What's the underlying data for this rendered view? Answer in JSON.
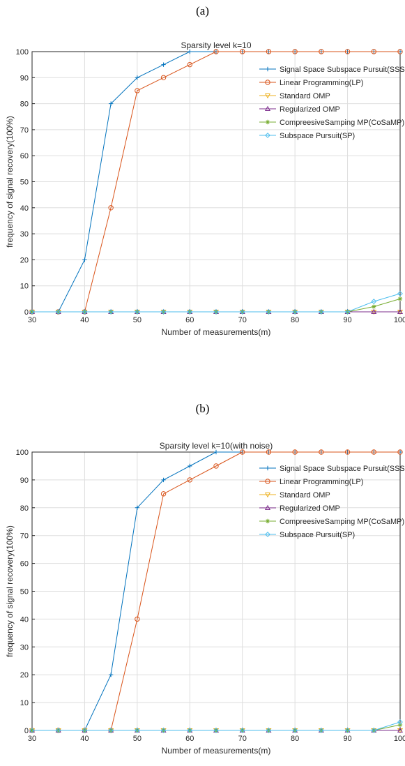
{
  "panels": {
    "a": {
      "label": "(a)"
    },
    "b": {
      "label": "(b)"
    }
  },
  "chart_data": [
    {
      "type": "line",
      "title": "Sparsity level k=10",
      "xlabel": "Number of measurements(m)",
      "ylabel": "frequency of signal recovery(100%)",
      "xlim": [
        30,
        100
      ],
      "ylim": [
        0,
        100
      ],
      "xticks": [
        30,
        40,
        50,
        60,
        70,
        80,
        90,
        100
      ],
      "yticks": [
        0,
        10,
        20,
        30,
        40,
        50,
        60,
        70,
        80,
        90,
        100
      ],
      "grid": true,
      "legend_position": "top-right",
      "x": [
        30,
        35,
        40,
        45,
        50,
        55,
        60,
        65,
        70,
        75,
        80,
        85,
        90,
        95,
        100
      ],
      "series": [
        {
          "name": "Signal Space Subspace Pursuit(SSSP)",
          "color": "#0072BD",
          "marker": "plus",
          "values": [
            0,
            0,
            20,
            80,
            90,
            95,
            100,
            100,
            100,
            100,
            100,
            100,
            100,
            100,
            100
          ]
        },
        {
          "name": "Linear Programming(LP)",
          "color": "#D95319",
          "marker": "circle",
          "values": [
            0,
            0,
            0,
            40,
            85,
            90,
            95,
            100,
            100,
            100,
            100,
            100,
            100,
            100,
            100
          ]
        },
        {
          "name": "Standard OMP",
          "color": "#EDB120",
          "marker": "triangle-down",
          "values": [
            0,
            0,
            0,
            0,
            0,
            0,
            0,
            0,
            0,
            0,
            0,
            0,
            0,
            0,
            0
          ]
        },
        {
          "name": "Regularized OMP",
          "color": "#7E2F8E",
          "marker": "triangle-up",
          "values": [
            0,
            0,
            0,
            0,
            0,
            0,
            0,
            0,
            0,
            0,
            0,
            0,
            0,
            0,
            0
          ]
        },
        {
          "name": "CompreesiveSamping MP(CoSaMP)",
          "color": "#77AC30",
          "marker": "asterisk",
          "values": [
            0,
            0,
            0,
            0,
            0,
            0,
            0,
            0,
            0,
            0,
            0,
            0,
            0,
            2,
            5
          ]
        },
        {
          "name": "Subspace Pursuit(SP)",
          "color": "#4DBEEE",
          "marker": "diamond",
          "values": [
            0,
            0,
            0,
            0,
            0,
            0,
            0,
            0,
            0,
            0,
            0,
            0,
            0,
            4,
            7
          ]
        }
      ]
    },
    {
      "type": "line",
      "title": "Sparsity level k=10(with noise)",
      "xlabel": "Number of measurements(m)",
      "ylabel": "frequency of signal recovery(100%)",
      "xlim": [
        30,
        100
      ],
      "ylim": [
        0,
        100
      ],
      "xticks": [
        30,
        40,
        50,
        60,
        70,
        80,
        90,
        100
      ],
      "yticks": [
        0,
        10,
        20,
        30,
        40,
        50,
        60,
        70,
        80,
        90,
        100
      ],
      "grid": true,
      "legend_position": "top-right",
      "x": [
        30,
        35,
        40,
        45,
        50,
        55,
        60,
        65,
        70,
        75,
        80,
        85,
        90,
        95,
        100
      ],
      "series": [
        {
          "name": "Signal Space Subspace Pursuit(SSSP)",
          "color": "#0072BD",
          "marker": "plus",
          "values": [
            0,
            0,
            0,
            20,
            80,
            90,
            95,
            100,
            100,
            100,
            100,
            100,
            100,
            100,
            100
          ]
        },
        {
          "name": "Linear Programming(LP)",
          "color": "#D95319",
          "marker": "circle",
          "values": [
            0,
            0,
            0,
            0,
            40,
            85,
            90,
            95,
            100,
            100,
            100,
            100,
            100,
            100,
            100
          ]
        },
        {
          "name": "Standard OMP",
          "color": "#EDB120",
          "marker": "triangle-down",
          "values": [
            0,
            0,
            0,
            0,
            0,
            0,
            0,
            0,
            0,
            0,
            0,
            0,
            0,
            0,
            0
          ]
        },
        {
          "name": "Regularized OMP",
          "color": "#7E2F8E",
          "marker": "triangle-up",
          "values": [
            0,
            0,
            0,
            0,
            0,
            0,
            0,
            0,
            0,
            0,
            0,
            0,
            0,
            0,
            0
          ]
        },
        {
          "name": "CompreesiveSamping MP(CoSaMP)",
          "color": "#77AC30",
          "marker": "asterisk",
          "values": [
            0,
            0,
            0,
            0,
            0,
            0,
            0,
            0,
            0,
            0,
            0,
            0,
            0,
            0,
            2
          ]
        },
        {
          "name": "Subspace Pursuit(SP)",
          "color": "#4DBEEE",
          "marker": "diamond",
          "values": [
            0,
            0,
            0,
            0,
            0,
            0,
            0,
            0,
            0,
            0,
            0,
            0,
            0,
            0,
            3
          ]
        }
      ]
    }
  ]
}
